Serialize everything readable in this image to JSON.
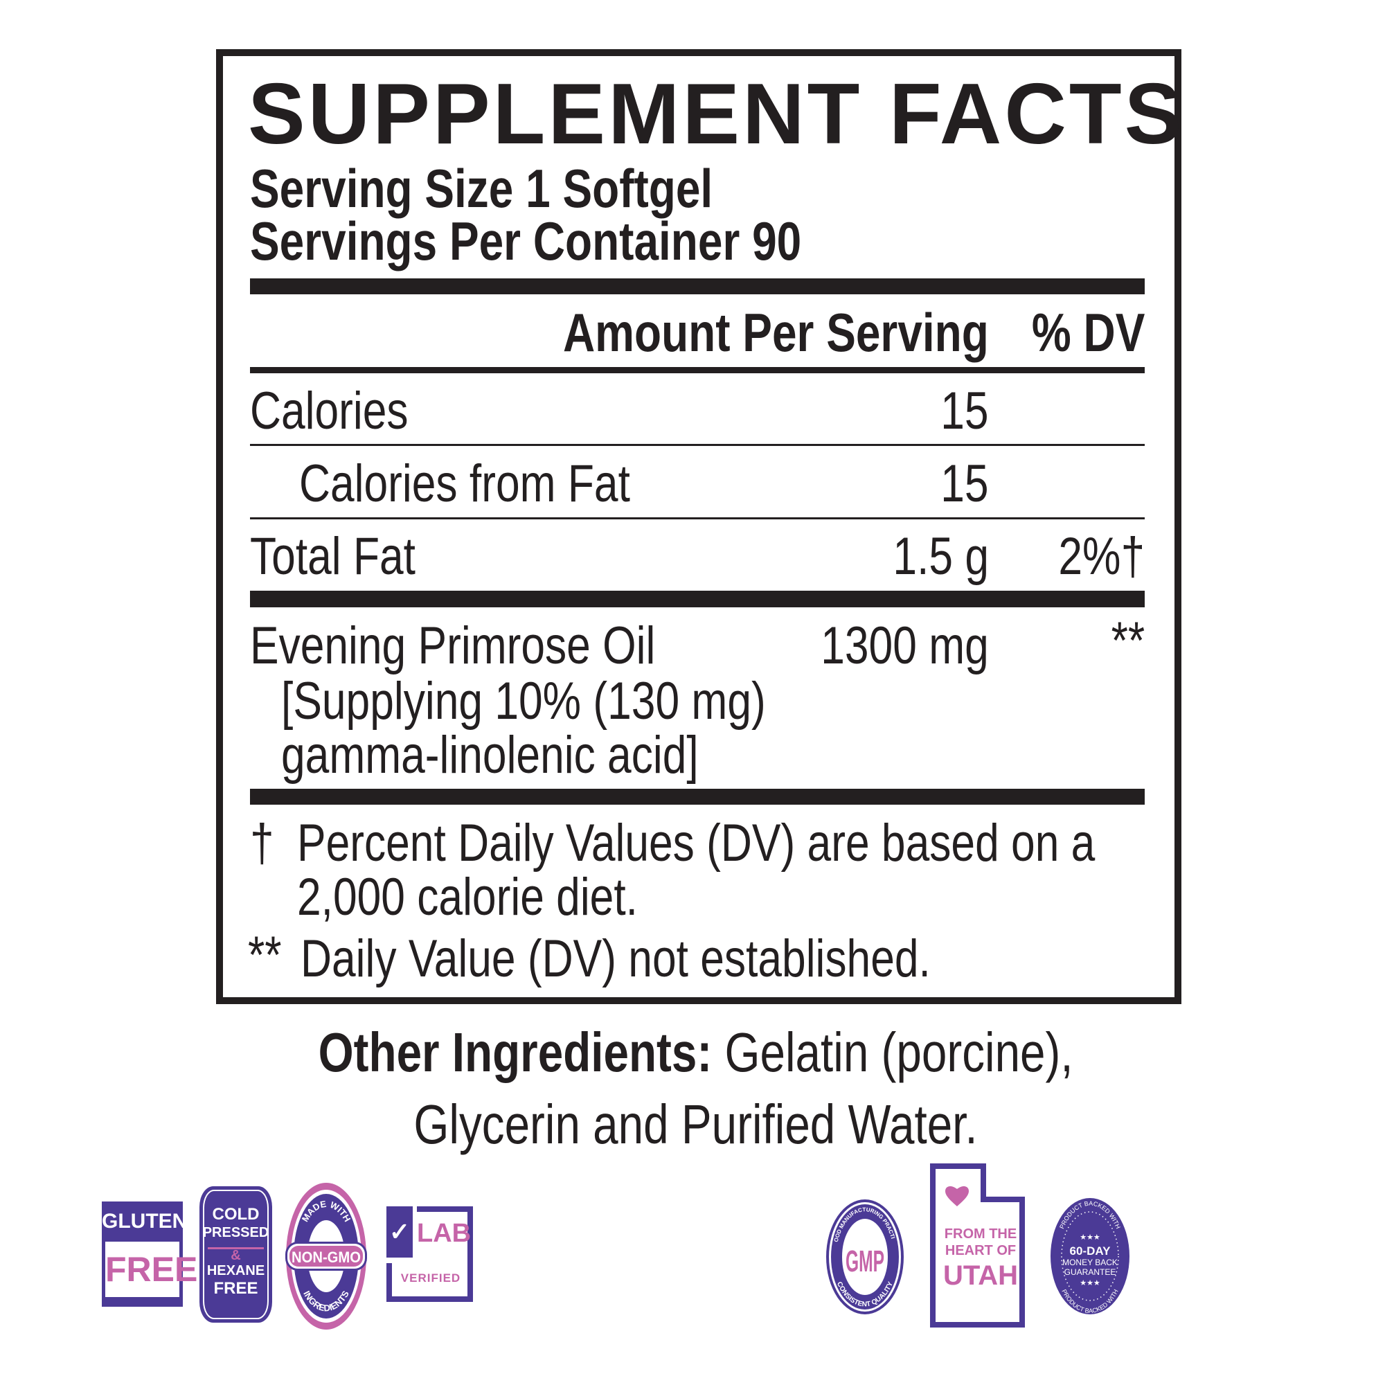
{
  "label": {
    "title": "SUPPLEMENT FACTS",
    "serving_size": "Serving Size 1 Softgel",
    "servings_per_container": "Servings Per Container 90",
    "header_amount": "Amount Per Serving",
    "header_dv": "% DV",
    "rows": [
      {
        "name": "Calories",
        "amount": "15",
        "dv": ""
      },
      {
        "name": "Calories from Fat",
        "amount": "15",
        "dv": ""
      },
      {
        "name": "Total Fat",
        "amount": "1.5 g",
        "dv": "2%†"
      },
      {
        "name": "Evening Primrose Oil",
        "amount": "1300 mg",
        "dv": "**",
        "sub1": "[Supplying 10% (130 mg)",
        "sub2": "gamma-linolenic acid]"
      }
    ],
    "footnote_dagger_symbol": "†",
    "footnote_dagger_line1": "Percent Daily Values (DV) are based on a",
    "footnote_dagger_line2": "2,000 calorie diet.",
    "footnote_star_symbol": "**",
    "footnote_star": "Daily Value (DV) not established."
  },
  "other_ingredients": {
    "label": "Other Ingredients:",
    "line1": "Gelatin (porcine),",
    "line2": "Glycerin and Purified Water."
  },
  "badges": {
    "gluten": {
      "top": "GLUTEN",
      "bottom": "FREE"
    },
    "cold": {
      "l1": "COLD",
      "l2": "PRESSED",
      "amp": "&",
      "l3": "HEXANE",
      "l4": "FREE"
    },
    "nongmo": {
      "top": "MADE WITH",
      "center": "NON-GMO",
      "bottom": "INGREDIENTS"
    },
    "lab": {
      "top": "LAB",
      "bottom": "VERIFIED"
    },
    "gmp": {
      "top": "GOOD MANUFACTURING PRACTICE",
      "center": "GMP",
      "bottom": "CONSISTENT QUALITY"
    },
    "utah": {
      "l1": "FROM THE",
      "l2": "HEART OF",
      "l3": "UTAH"
    },
    "guarantee": {
      "ring_top": "PRODUCT BACKED WITH",
      "ring_bottom": "PRODUCT BACKED WITH",
      "stars": "★★★",
      "l1": "60-DAY",
      "l2": "MONEY BACK",
      "l3": "GUARANTEE"
    }
  },
  "colors": {
    "purple": "#4b3a96",
    "pink": "#c564a8",
    "ink": "#231f20"
  }
}
